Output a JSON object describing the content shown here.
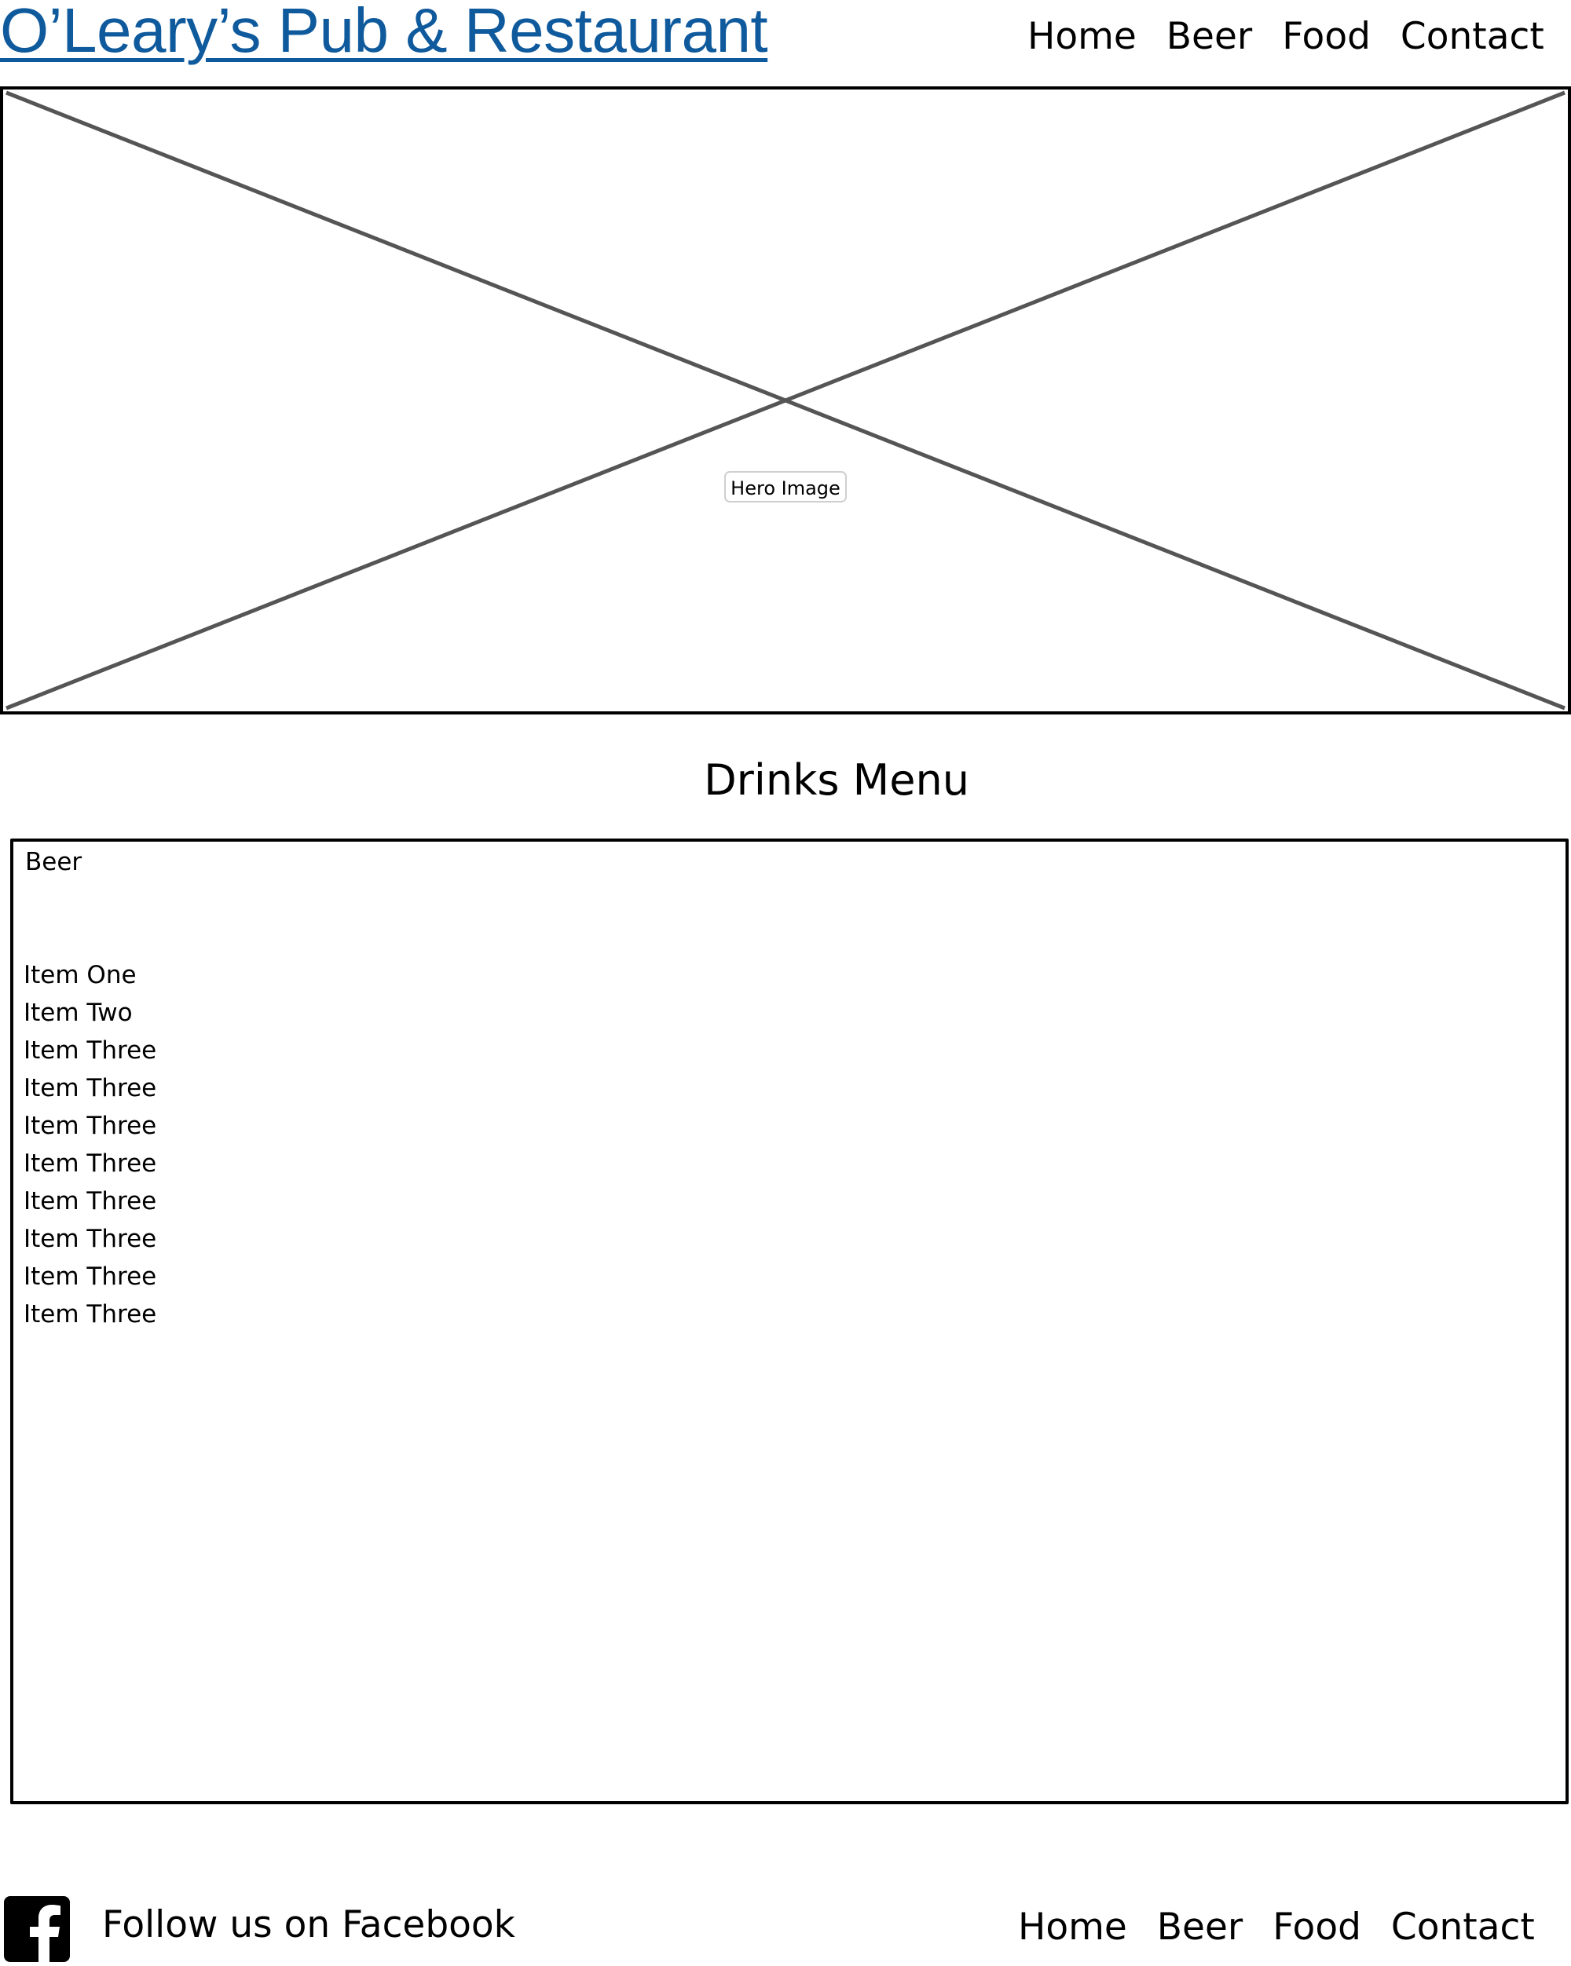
{
  "header": {
    "site_title": "O’Leary’s Pub & Restaurant",
    "nav": [
      "Home",
      "Beer",
      "Food",
      "Contact"
    ]
  },
  "hero": {
    "label": "Hero Image"
  },
  "main": {
    "heading": "Drinks Menu",
    "menu": {
      "category": "Beer",
      "items": [
        "Item One",
        "Item Two",
        "Item Three",
        "Item Three",
        "Item Three",
        "Item Three",
        "Item Three",
        "Item Three",
        "Item Three",
        "Item Three"
      ]
    }
  },
  "footer": {
    "facebook_icon": "facebook-icon",
    "follow_text": "Follow us on Facebook",
    "nav": [
      "Home",
      "Beer",
      "Food",
      "Contact"
    ]
  },
  "colors": {
    "title": "#0f5a9c",
    "text": "#000000",
    "placeholder_lines": "#555555"
  }
}
